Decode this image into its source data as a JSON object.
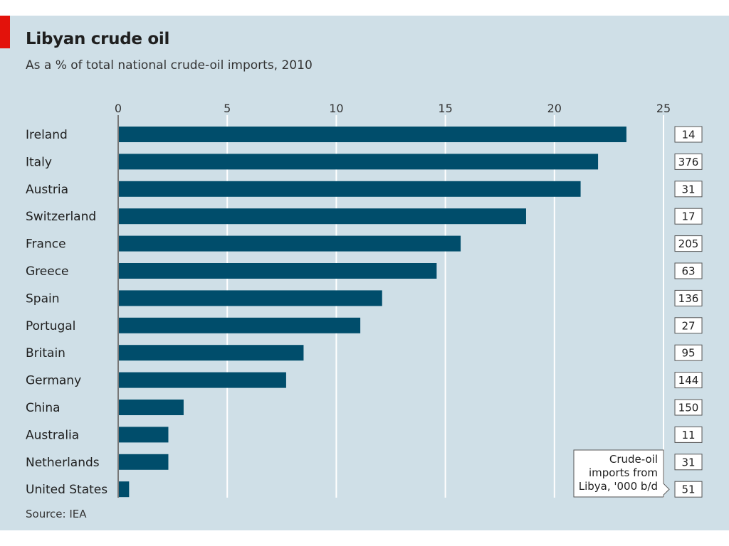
{
  "header": {
    "title": "Libyan crude oil",
    "subtitle": "As a % of total national crude-oil imports, 2010"
  },
  "footer": {
    "source": "Source: IEA"
  },
  "colors": {
    "background": "#cfdfe7",
    "bar": "#004d6b",
    "accent": "#e3120b"
  },
  "chart_data": {
    "type": "bar",
    "orientation": "horizontal",
    "title": "Libyan crude oil",
    "subtitle": "As a % of total national crude-oil imports, 2010",
    "xlabel": "",
    "ylabel": "",
    "xlim": [
      0,
      25
    ],
    "xticks": [
      0,
      5,
      10,
      15,
      20,
      25
    ],
    "grid": true,
    "categories": [
      "Ireland",
      "Italy",
      "Austria",
      "Switzerland",
      "France",
      "Greece",
      "Spain",
      "Portugal",
      "Britain",
      "Germany",
      "China",
      "Australia",
      "Netherlands",
      "United States"
    ],
    "values": [
      23.3,
      22.0,
      21.2,
      18.7,
      15.7,
      14.6,
      12.1,
      11.1,
      8.5,
      7.7,
      3.0,
      2.3,
      2.3,
      0.5
    ],
    "secondary_values": [
      14,
      376,
      31,
      17,
      205,
      63,
      136,
      27,
      95,
      144,
      150,
      11,
      31,
      51
    ],
    "annotation": {
      "lines": [
        "Crude-oil",
        "imports from",
        "Libya, '000 b/d"
      ]
    }
  }
}
